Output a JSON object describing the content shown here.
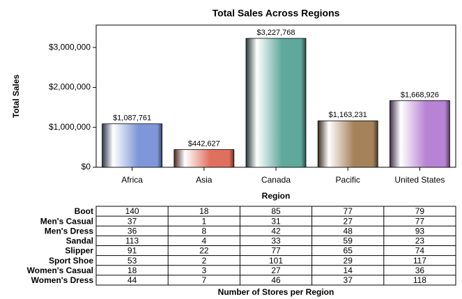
{
  "chart_data": {
    "type": "bar",
    "title": "Total Sales Across Regions",
    "x_label": "Region",
    "y_label": "Total Sales",
    "categories": [
      "Africa",
      "Asia",
      "Canada",
      "Pacific",
      "United States"
    ],
    "values": [
      1087761,
      442627,
      3227768,
      1163231,
      1668926
    ],
    "value_labels": [
      "$1,087,761",
      "$442,627",
      "$3,227,768",
      "$1,163,231",
      "$1,668,926"
    ],
    "colors": [
      "#7f97d8",
      "#e0705e",
      "#5fa89c",
      "#a5825a",
      "#b883d4"
    ],
    "ylim": [
      0,
      3560000
    ],
    "yticks": [
      {
        "value": 0,
        "label": "$0"
      },
      {
        "value": 1000000,
        "label": "$1,000,000"
      },
      {
        "value": 2000000,
        "label": "$2,000,000"
      },
      {
        "value": 3000000,
        "label": "$3,000,000"
      }
    ],
    "grid": false
  },
  "table": {
    "title": "Number of Stores per Region",
    "rows": [
      {
        "label": "Boot",
        "values": [
          140,
          18,
          85,
          77,
          79
        ]
      },
      {
        "label": "Men's Casual",
        "values": [
          37,
          1,
          31,
          27,
          77
        ]
      },
      {
        "label": "Men's Dress",
        "values": [
          36,
          8,
          42,
          48,
          93
        ]
      },
      {
        "label": "Sandal",
        "values": [
          113,
          4,
          33,
          59,
          23
        ]
      },
      {
        "label": "Slipper",
        "values": [
          91,
          22,
          77,
          65,
          74
        ]
      },
      {
        "label": "Sport Shoe",
        "values": [
          53,
          2,
          101,
          29,
          117
        ]
      },
      {
        "label": "Women's Casual",
        "values": [
          18,
          3,
          27,
          14,
          36
        ]
      },
      {
        "label": "Women's Dress",
        "values": [
          44,
          7,
          46,
          37,
          118
        ]
      }
    ]
  }
}
